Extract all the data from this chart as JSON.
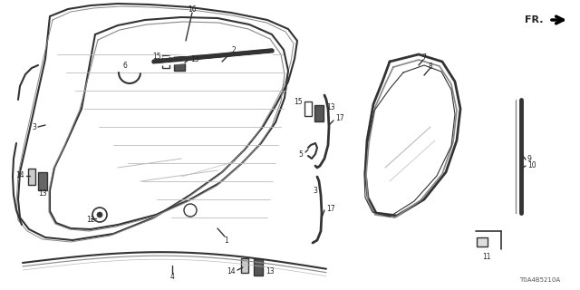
{
  "bg_color": "#ffffff",
  "diagram_code": "T0A4B5210A",
  "line_color": "#333333",
  "text_color": "#222222",
  "gray_color": "#888888",
  "light_gray": "#bbbbbb",
  "fs_label": 5.5,
  "fs_code": 5.0
}
